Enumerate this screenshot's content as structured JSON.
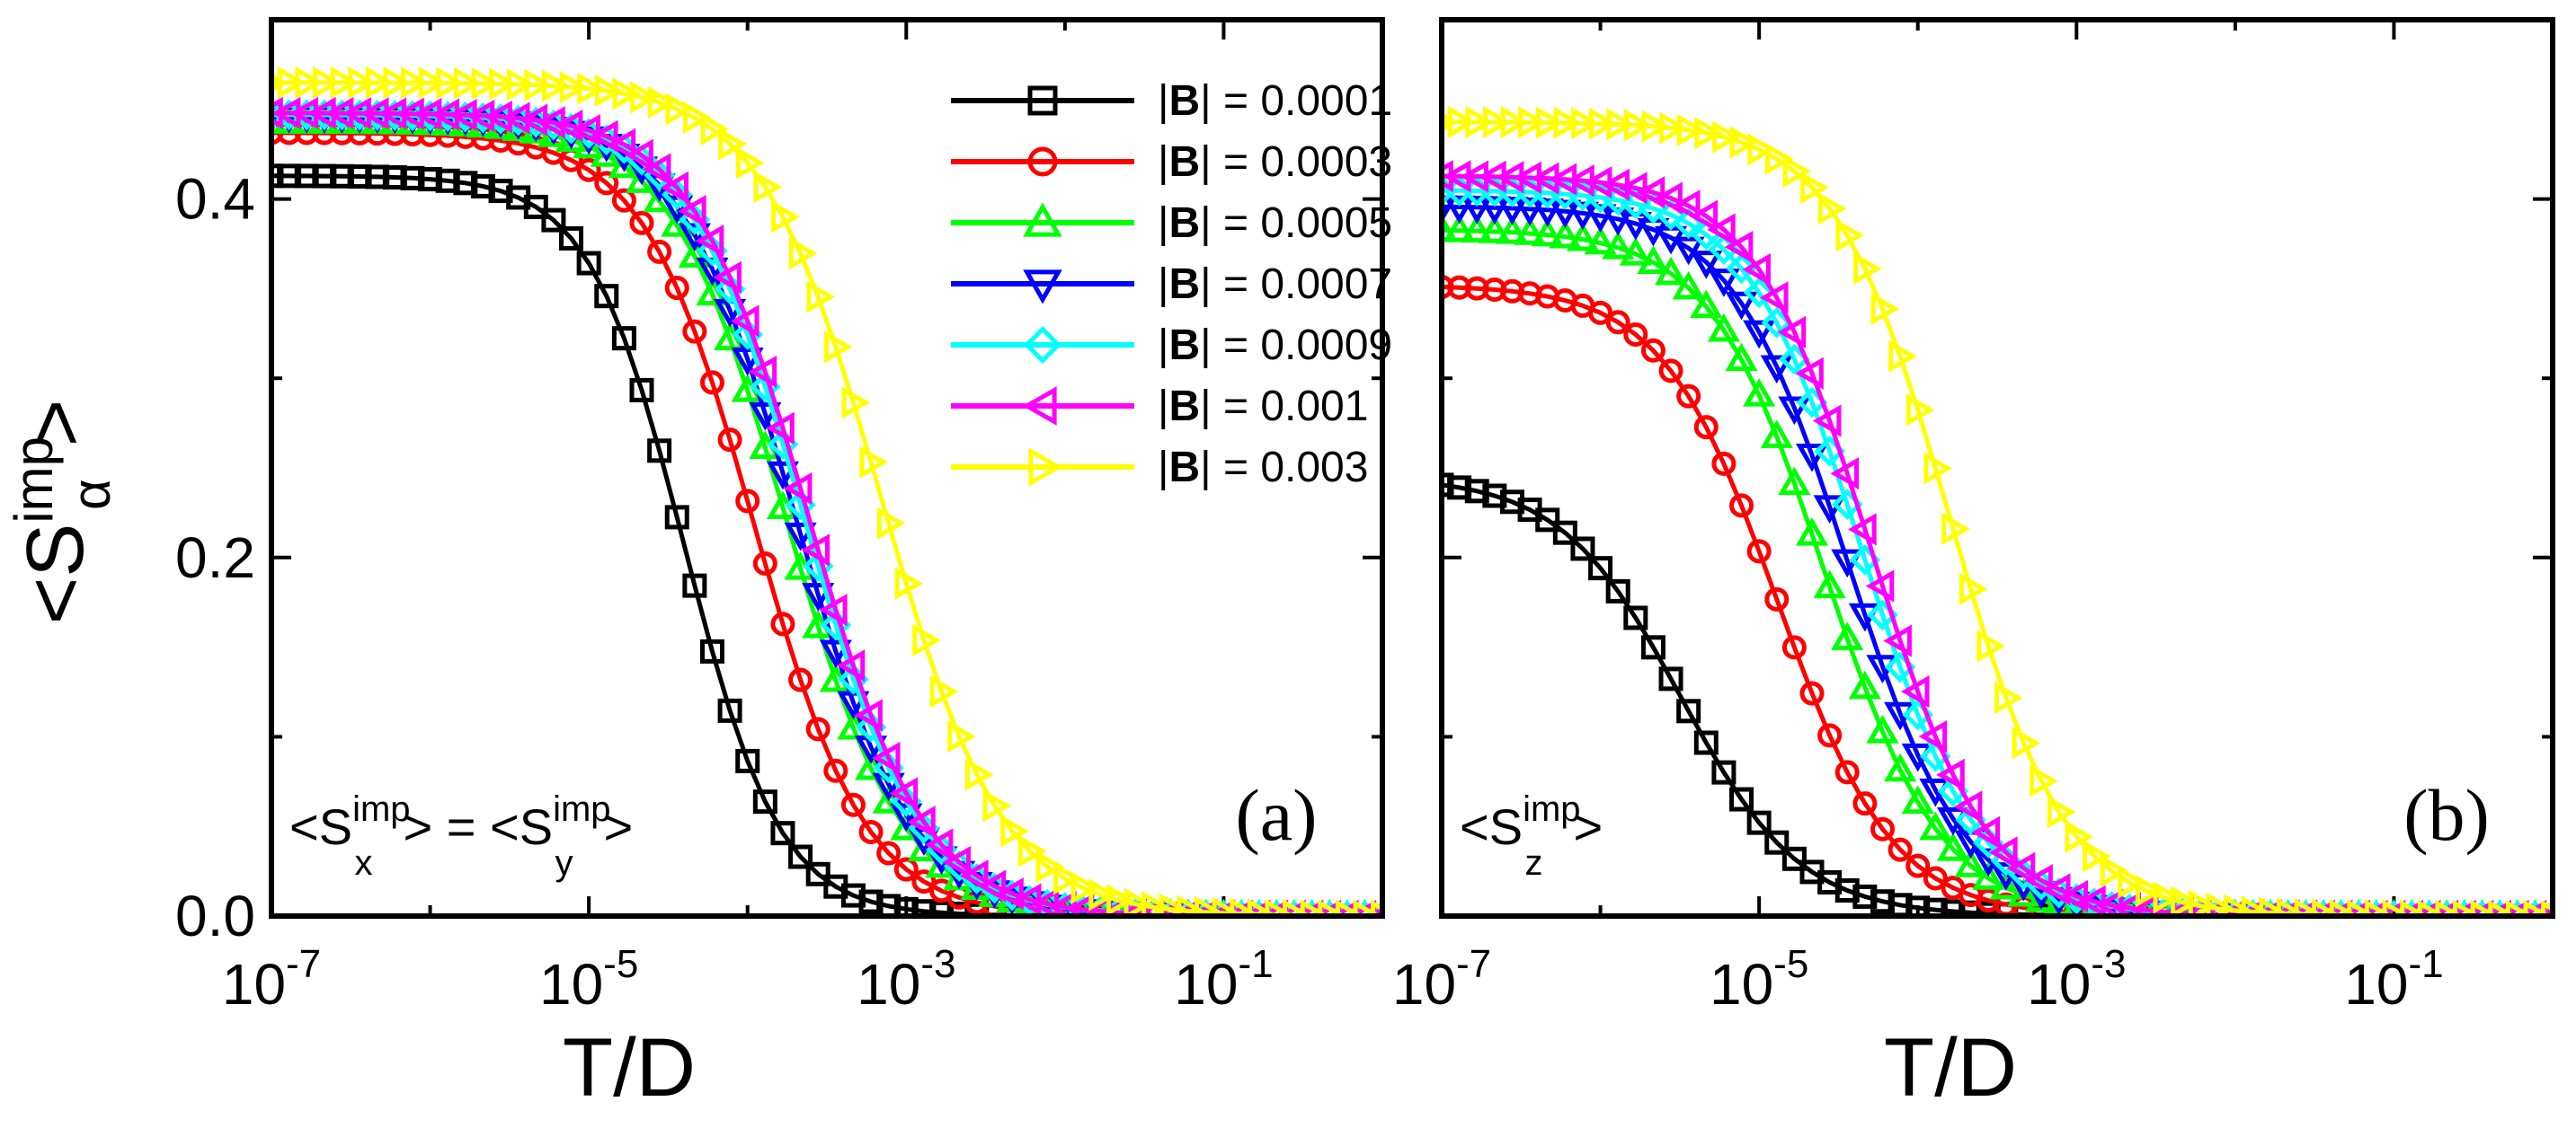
{
  "figure": {
    "ylabel": {
      "main": "<S",
      "sup": "imp",
      "sub": "α",
      "close": ">"
    },
    "xlabel": "T/D"
  },
  "legend": {
    "items": [
      {
        "prefix": "|",
        "bold": "B",
        "suffix": "| = 0.0001"
      },
      {
        "prefix": "|",
        "bold": "B",
        "suffix": "| = 0.0003"
      },
      {
        "prefix": "|",
        "bold": "B",
        "suffix": "| = 0.0005"
      },
      {
        "prefix": "|",
        "bold": "B",
        "suffix": "| = 0.0007"
      },
      {
        "prefix": "|",
        "bold": "B",
        "suffix": "| = 0.0009"
      },
      {
        "prefix": "|",
        "bold": "B",
        "suffix": "| = 0.001"
      },
      {
        "prefix": "|",
        "bold": "B",
        "suffix": "| = 0.003"
      }
    ]
  },
  "panels": {
    "a": {
      "label": "(a)",
      "annotation": {
        "parts": [
          "<S",
          "imp",
          "x",
          "> = <S",
          "imp",
          "y",
          ">"
        ]
      }
    },
    "b": {
      "label": "(b)",
      "annotation": {
        "parts": [
          "<S",
          "imp",
          "z",
          ">"
        ]
      }
    }
  },
  "chart_data": [
    {
      "type": "line",
      "panel": "(a)",
      "title": "",
      "xlabel": "T/D",
      "ylabel": "<S_α^imp>",
      "xscale": "log",
      "xlim": [
        1e-07,
        1
      ],
      "ylim": [
        0,
        0.5
      ],
      "x_ticks": [
        {
          "mant": "10",
          "exp": "-7"
        },
        {
          "mant": "10",
          "exp": "-5"
        },
        {
          "mant": "10",
          "exp": "-3"
        },
        {
          "mant": "10",
          "exp": "-1"
        }
      ],
      "y_ticks": [
        "0.0",
        "0.2",
        "0.4"
      ],
      "y_tick_values": [
        0,
        0.2,
        0.4
      ],
      "legend_position": "top-right",
      "series": [
        {
          "name": "|B| = 0.0001",
          "color": "#000000",
          "marker": "square",
          "plateau": 0.413,
          "T_half": 4e-05,
          "slope": 1.45
        },
        {
          "name": "|B| = 0.0003",
          "color": "#ff0000",
          "marker": "circle",
          "plateau": 0.437,
          "T_half": 0.00011,
          "slope": 1.25
        },
        {
          "name": "|B| = 0.0005",
          "color": "#00ff00",
          "marker": "triangle-up",
          "plateau": 0.443,
          "T_half": 0.000175,
          "slope": 1.2
        },
        {
          "name": "|B| = 0.0007",
          "color": "#0000ff",
          "marker": "triangle-down",
          "plateau": 0.446,
          "T_half": 0.0002,
          "slope": 1.2
        },
        {
          "name": "|B| = 0.0009",
          "color": "#00ffff",
          "marker": "diamond",
          "plateau": 0.447,
          "T_half": 0.000225,
          "slope": 1.2
        },
        {
          "name": "|B| = 0.001",
          "color": "#ff00ff",
          "marker": "triangle-left",
          "plateau": 0.448,
          "T_half": 0.00024,
          "slope": 1.2
        },
        {
          "name": "|B| = 0.003",
          "color": "#ffff00",
          "marker": "triangle-right",
          "plateau": 0.465,
          "T_half": 0.0007,
          "slope": 1.15
        }
      ]
    },
    {
      "type": "line",
      "panel": "(b)",
      "title": "",
      "xlabel": "T/D",
      "ylabel": "<S_z^imp>",
      "xscale": "log",
      "xlim": [
        1e-07,
        1
      ],
      "ylim": [
        0,
        0.5
      ],
      "x_ticks": [
        {
          "mant": "10",
          "exp": "-7"
        },
        {
          "mant": "10",
          "exp": "-5"
        },
        {
          "mant": "10",
          "exp": "-3"
        },
        {
          "mant": "10",
          "exp": "-1"
        }
      ],
      "y_ticks": [
        "0.0",
        "0.2",
        "0.4"
      ],
      "y_tick_values": [
        0,
        0.2,
        0.4
      ],
      "legend_position": "none",
      "series": [
        {
          "name": "|B| = 0.0001",
          "color": "#000000",
          "marker": "square",
          "plateau": 0.245,
          "T_half": 3.2e-06,
          "slope": 1.15
        },
        {
          "name": "|B| = 0.0003",
          "color": "#ff0000",
          "marker": "circle",
          "plateau": 0.352,
          "T_half": 1.3e-05,
          "slope": 1.2
        },
        {
          "name": "|B| = 0.0005",
          "color": "#00ff00",
          "marker": "triangle-up",
          "plateau": 0.383,
          "T_half": 2.6e-05,
          "slope": 1.2
        },
        {
          "name": "|B| = 0.0007",
          "color": "#0000ff",
          "marker": "triangle-down",
          "plateau": 0.396,
          "T_half": 3.6e-05,
          "slope": 1.2
        },
        {
          "name": "|B| = 0.0009",
          "color": "#00ffff",
          "marker": "diamond",
          "plateau": 0.405,
          "T_half": 4.5e-05,
          "slope": 1.2
        },
        {
          "name": "|B| = 0.001",
          "color": "#ff00ff",
          "marker": "triangle-left",
          "plateau": 0.413,
          "T_half": 5e-05,
          "slope": 1.2
        },
        {
          "name": "|B| = 0.003",
          "color": "#ffff00",
          "marker": "triangle-right",
          "plateau": 0.443,
          "T_half": 0.00016,
          "slope": 1.2
        }
      ]
    }
  ]
}
